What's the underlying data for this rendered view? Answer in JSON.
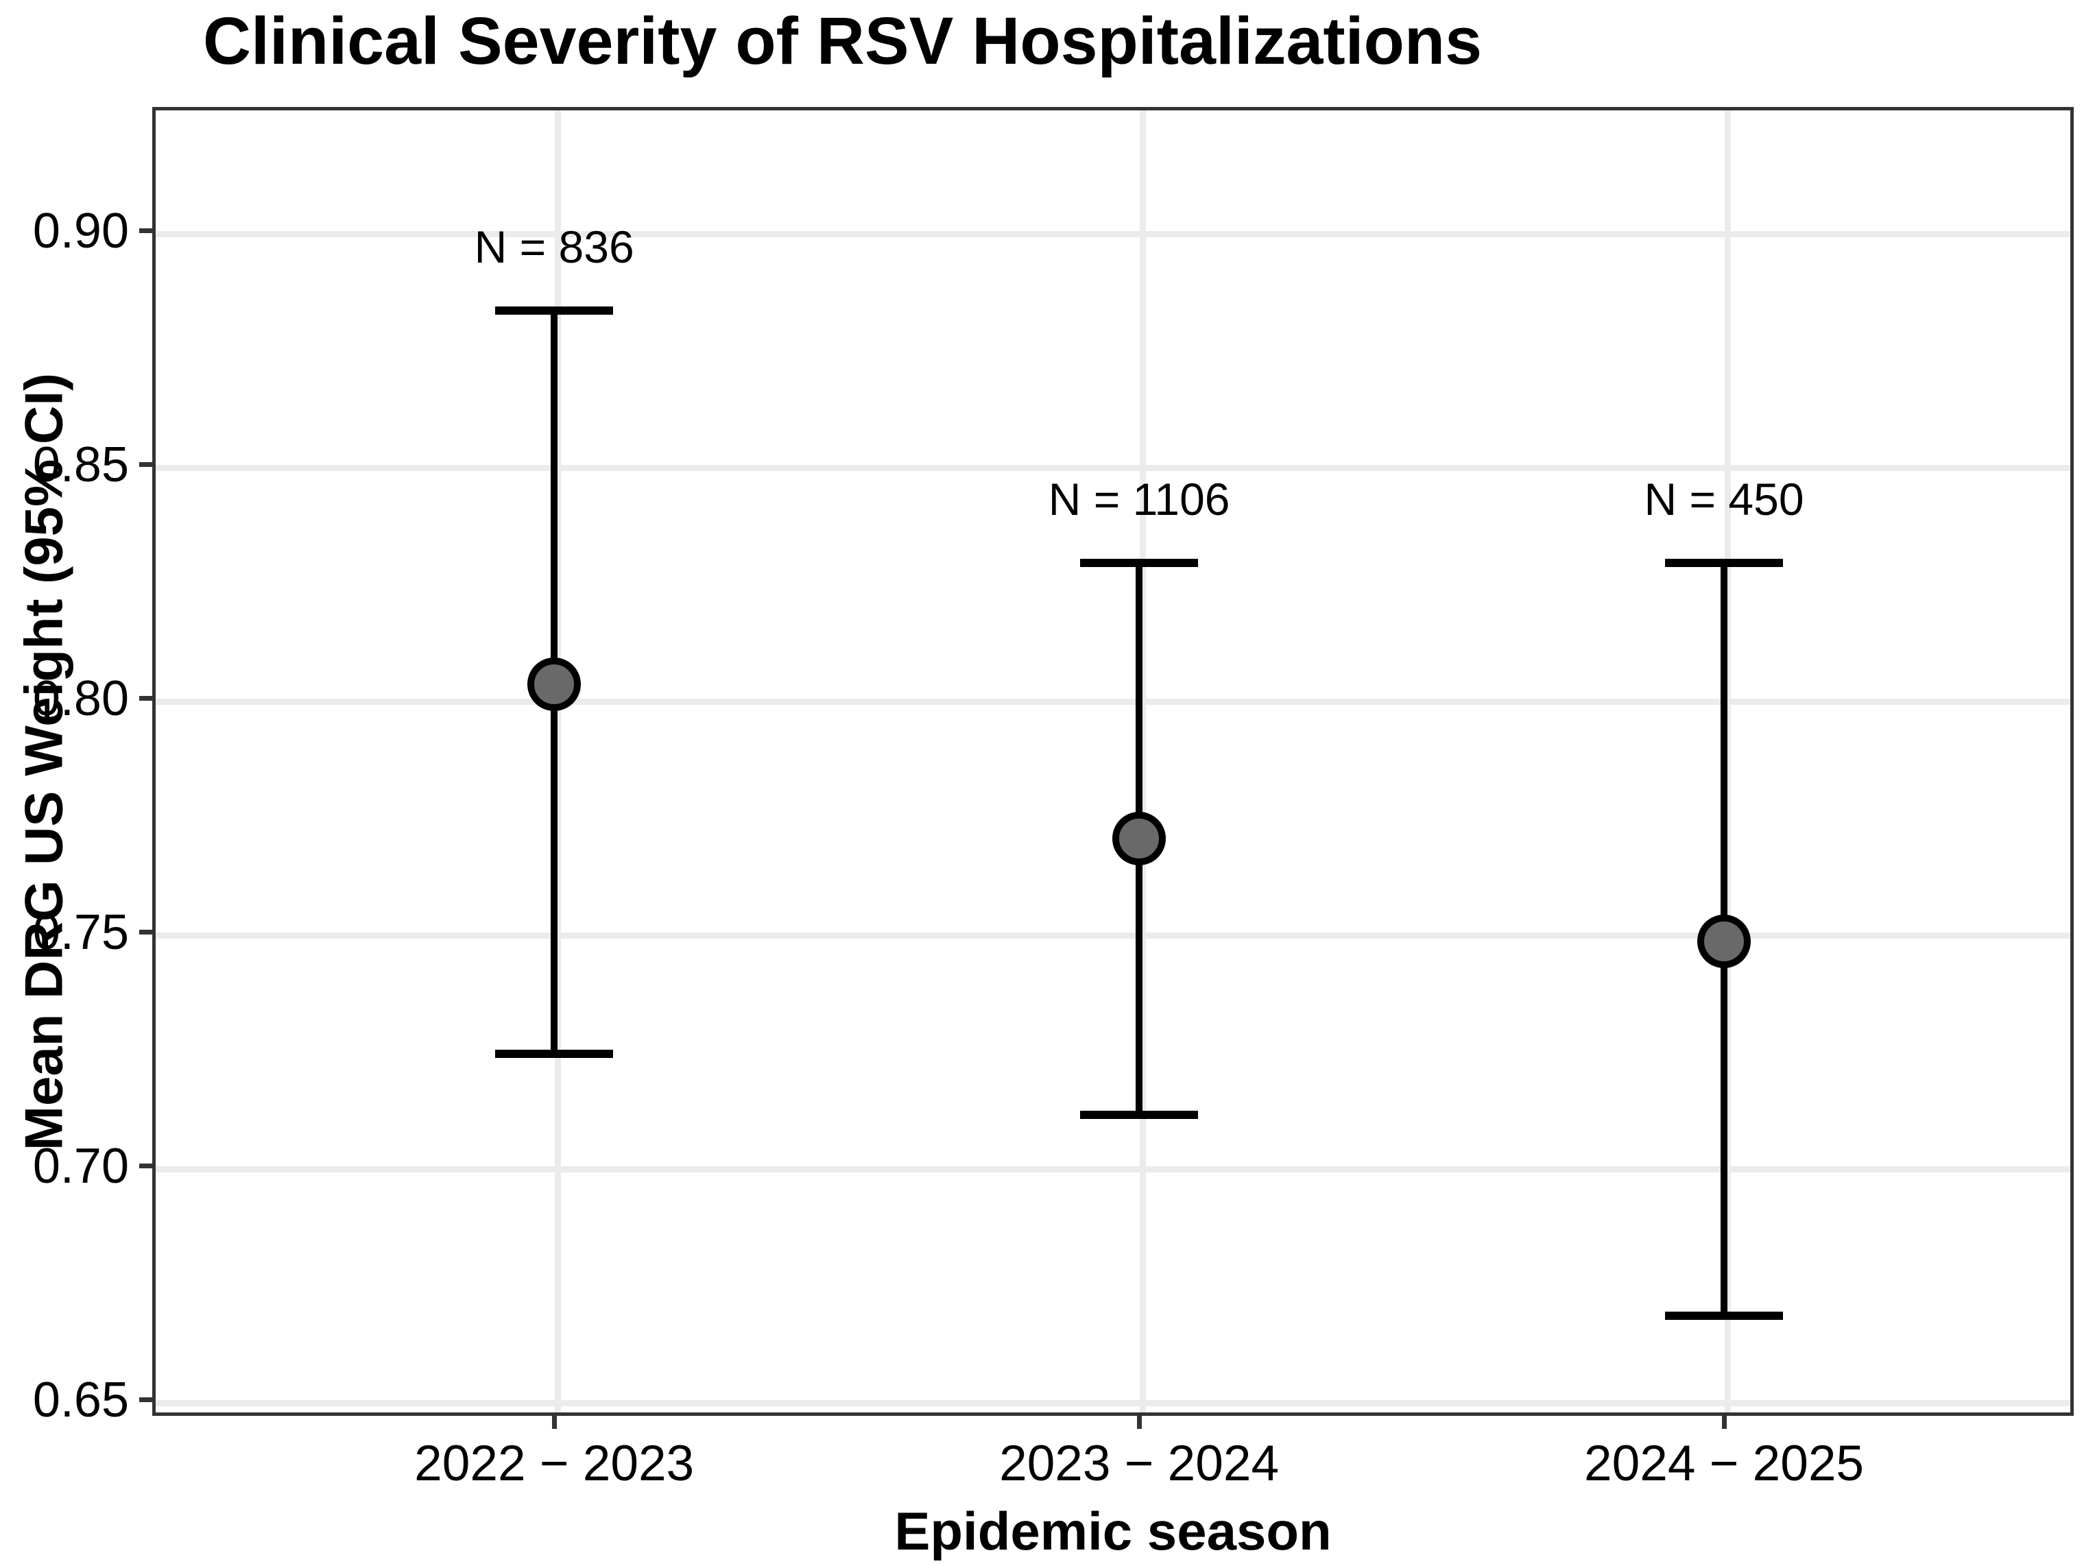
{
  "title": "Clinical Severity of RSV Hospitalizations",
  "chart_data": {
    "type": "scatter",
    "title": "Clinical Severity of RSV Hospitalizations",
    "xlabel": "Epidemic season",
    "ylabel": "Mean DRG US Weight (95% CI)",
    "categories": [
      "2022 − 2023",
      "2023 − 2024",
      "2024 − 2025"
    ],
    "series": [
      {
        "name": "Mean DRG US Weight",
        "means": [
          0.803,
          0.77,
          0.748
        ],
        "ci_low": [
          0.724,
          0.711,
          0.668
        ],
        "ci_high": [
          0.883,
          0.829,
          0.829
        ]
      }
    ],
    "sample_sizes": [
      836,
      1106,
      450
    ],
    "n_labels": [
      "N = 836",
      "N = 1106",
      "N = 450"
    ],
    "y_ticks": [
      0.65,
      0.7,
      0.75,
      0.8,
      0.85,
      0.9
    ],
    "y_tick_labels": [
      "0.65",
      "0.70",
      "0.75",
      "0.80",
      "0.85",
      "0.90"
    ],
    "ylim": [
      0.6466,
      0.9265
    ],
    "grid": true,
    "legend_position": "none",
    "colors": {
      "point_fill": "#696969",
      "point_stroke": "#000000",
      "errorbar": "#000000",
      "grid": "#ebebeb",
      "panel_border": "#333333",
      "tick": "#333333",
      "text": "#000000",
      "background": "#ffffff"
    }
  }
}
